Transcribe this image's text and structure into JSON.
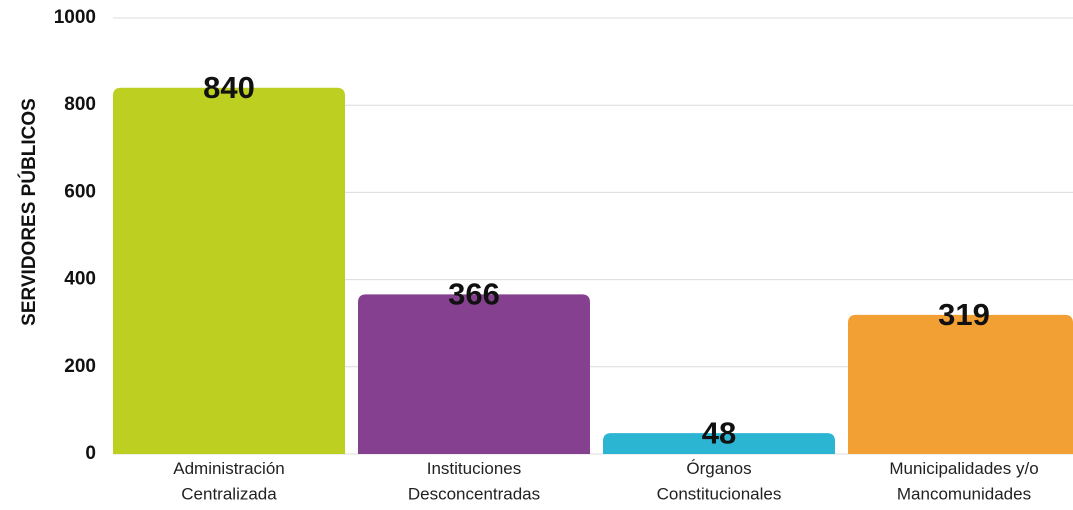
{
  "chart_data": {
    "type": "bar",
    "y_axis_label": "SERVIDORES PÚBLICOS",
    "categories": [
      "Administración\nCentralizada",
      "Instituciones\nDesconcentradas",
      "Órganos\nConstitucionales",
      "Municipalidades y/o\nMancomunidades"
    ],
    "values": [
      840,
      366,
      48,
      319
    ],
    "colors": [
      "#bdd022",
      "#85418f",
      "#2bb5d3",
      "#f2a033"
    ],
    "ylim": [
      0,
      1000
    ],
    "yticks": [
      0,
      200,
      400,
      600,
      800,
      1000
    ],
    "grid": true
  }
}
